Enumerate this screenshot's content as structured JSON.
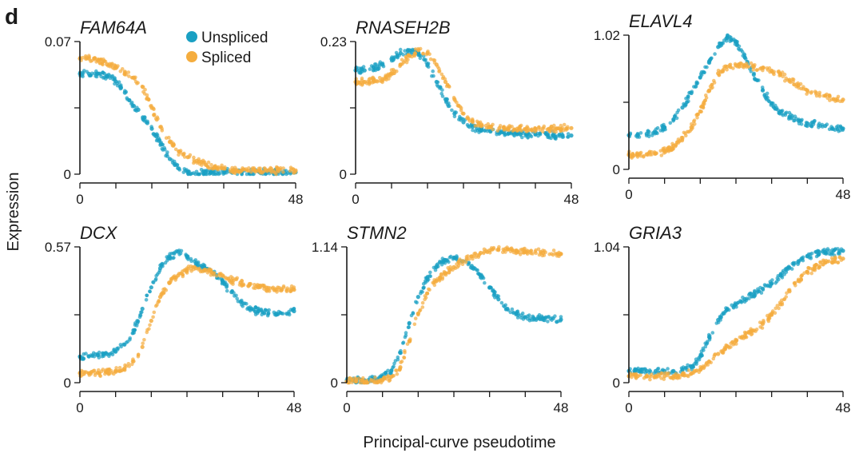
{
  "figure_label": "d",
  "xlabel": "Principal-curve pseudotime",
  "ylabel": "Expression",
  "colors": {
    "unspliced": "#1aa0c3",
    "spliced": "#f5ad3e"
  },
  "chart_data": [
    {
      "type": "scatter",
      "title": "FAM64A",
      "xlim": [
        0,
        48
      ],
      "ylim": [
        0,
        0.07
      ],
      "xtick_labels": [
        "0",
        "48"
      ],
      "ytick_labels": [
        "0",
        "0.07"
      ],
      "legend": {
        "position": "top-right",
        "entries": [
          "Unspliced",
          "Spliced"
        ]
      },
      "series": [
        {
          "name": "Unspliced",
          "x": [
            0,
            2,
            4,
            6,
            8,
            9,
            10,
            11,
            12,
            13,
            14,
            15,
            16,
            17,
            18,
            20,
            22,
            24,
            28,
            32,
            36,
            40,
            44,
            48
          ],
          "y": [
            0.053,
            0.053,
            0.053,
            0.052,
            0.049,
            0.046,
            0.043,
            0.039,
            0.036,
            0.034,
            0.03,
            0.027,
            0.024,
            0.02,
            0.016,
            0.008,
            0.003,
            0.001,
            0.001,
            0.001,
            0.001,
            0.001,
            0.001,
            0.001
          ]
        },
        {
          "name": "Spliced",
          "x": [
            0,
            2,
            4,
            6,
            8,
            10,
            12,
            14,
            16,
            18,
            20,
            22,
            24,
            26,
            28,
            30,
            32,
            34,
            36,
            40,
            44,
            48
          ],
          "y": [
            0.061,
            0.061,
            0.06,
            0.058,
            0.056,
            0.054,
            0.051,
            0.046,
            0.035,
            0.025,
            0.017,
            0.012,
            0.009,
            0.007,
            0.005,
            0.004,
            0.003,
            0.002,
            0.002,
            0.002,
            0.002,
            0.002
          ]
        }
      ]
    },
    {
      "type": "scatter",
      "title": "RNASEH2B",
      "xlim": [
        0,
        48
      ],
      "ylim": [
        0,
        0.23
      ],
      "xtick_labels": [
        "0",
        "48"
      ],
      "ytick_labels": [
        "0",
        "0.23"
      ],
      "series": [
        {
          "name": "Unspliced",
          "x": [
            0,
            2,
            4,
            6,
            8,
            10,
            12,
            14,
            16,
            18,
            20,
            22,
            24,
            26,
            28,
            30,
            32,
            34,
            36,
            38,
            40,
            44,
            48
          ],
          "y": [
            0.18,
            0.18,
            0.185,
            0.19,
            0.2,
            0.21,
            0.215,
            0.21,
            0.19,
            0.16,
            0.13,
            0.105,
            0.09,
            0.082,
            0.077,
            0.074,
            0.072,
            0.071,
            0.07,
            0.069,
            0.069,
            0.068,
            0.067
          ]
        },
        {
          "name": "Spliced",
          "x": [
            0,
            2,
            4,
            6,
            8,
            10,
            12,
            14,
            16,
            18,
            20,
            22,
            24,
            26,
            28,
            30,
            32,
            34,
            36,
            40,
            44,
            48
          ],
          "y": [
            0.16,
            0.16,
            0.162,
            0.165,
            0.175,
            0.19,
            0.205,
            0.215,
            0.21,
            0.19,
            0.16,
            0.13,
            0.105,
            0.092,
            0.086,
            0.082,
            0.08,
            0.079,
            0.079,
            0.079,
            0.079,
            0.08
          ]
        }
      ]
    },
    {
      "type": "scatter",
      "title": "ELAVL4",
      "xlim": [
        0,
        48
      ],
      "ylim": [
        0,
        1.02
      ],
      "xtick_labels": [
        "0",
        "48"
      ],
      "ytick_labels": [
        "0",
        "1.02"
      ],
      "series": [
        {
          "name": "Unspliced",
          "x": [
            0,
            2,
            4,
            6,
            8,
            10,
            12,
            14,
            16,
            18,
            20,
            22,
            24,
            26,
            28,
            30,
            32,
            34,
            36,
            38,
            40,
            44,
            48
          ],
          "y": [
            0.26,
            0.26,
            0.27,
            0.28,
            0.32,
            0.38,
            0.47,
            0.58,
            0.7,
            0.82,
            0.93,
            1.0,
            0.97,
            0.85,
            0.72,
            0.6,
            0.5,
            0.44,
            0.4,
            0.37,
            0.35,
            0.33,
            0.31
          ]
        },
        {
          "name": "Spliced",
          "x": [
            0,
            2,
            4,
            6,
            8,
            10,
            12,
            14,
            16,
            18,
            20,
            22,
            24,
            26,
            28,
            30,
            32,
            34,
            36,
            38,
            40,
            44,
            48
          ],
          "y": [
            0.11,
            0.11,
            0.115,
            0.12,
            0.14,
            0.18,
            0.24,
            0.32,
            0.44,
            0.6,
            0.73,
            0.78,
            0.79,
            0.79,
            0.78,
            0.77,
            0.75,
            0.72,
            0.68,
            0.64,
            0.6,
            0.56,
            0.53
          ]
        }
      ]
    },
    {
      "type": "scatter",
      "title": "DCX",
      "xlim": [
        0,
        48
      ],
      "ylim": [
        0,
        0.57
      ],
      "xtick_labels": [
        "0",
        "48"
      ],
      "ytick_labels": [
        "0",
        "0.57"
      ],
      "series": [
        {
          "name": "Unspliced",
          "x": [
            0,
            2,
            4,
            6,
            8,
            10,
            12,
            14,
            16,
            18,
            20,
            22,
            24,
            26,
            28,
            30,
            32,
            34,
            36,
            38,
            40,
            44,
            48
          ],
          "y": [
            0.11,
            0.11,
            0.115,
            0.12,
            0.13,
            0.16,
            0.22,
            0.31,
            0.4,
            0.48,
            0.53,
            0.55,
            0.53,
            0.5,
            0.48,
            0.46,
            0.42,
            0.38,
            0.34,
            0.31,
            0.3,
            0.29,
            0.3
          ]
        },
        {
          "name": "Spliced",
          "x": [
            0,
            2,
            4,
            6,
            8,
            10,
            12,
            14,
            16,
            18,
            20,
            22,
            24,
            26,
            28,
            30,
            32,
            34,
            36,
            38,
            40,
            44,
            48
          ],
          "y": [
            0.04,
            0.04,
            0.042,
            0.045,
            0.05,
            0.06,
            0.09,
            0.15,
            0.26,
            0.36,
            0.42,
            0.45,
            0.47,
            0.48,
            0.47,
            0.46,
            0.45,
            0.43,
            0.42,
            0.41,
            0.4,
            0.39,
            0.39
          ]
        }
      ]
    },
    {
      "type": "scatter",
      "title": "STMN2",
      "xlim": [
        0,
        48
      ],
      "ylim": [
        0,
        1.14
      ],
      "xtick_labels": [
        "0",
        "48"
      ],
      "ytick_labels": [
        "0",
        "1.14"
      ],
      "series": [
        {
          "name": "Unspliced",
          "x": [
            0,
            2,
            4,
            6,
            8,
            10,
            12,
            14,
            16,
            18,
            20,
            22,
            24,
            26,
            28,
            30,
            32,
            34,
            36,
            38,
            40,
            44,
            48
          ],
          "y": [
            0.02,
            0.02,
            0.02,
            0.03,
            0.05,
            0.1,
            0.25,
            0.5,
            0.72,
            0.88,
            0.97,
            1.03,
            1.05,
            1.02,
            0.98,
            0.9,
            0.8,
            0.7,
            0.62,
            0.58,
            0.55,
            0.54,
            0.53
          ]
        },
        {
          "name": "Spliced",
          "x": [
            0,
            2,
            4,
            6,
            8,
            10,
            12,
            14,
            16,
            18,
            20,
            22,
            24,
            26,
            28,
            30,
            32,
            34,
            36,
            38,
            40,
            44,
            48
          ],
          "y": [
            0.01,
            0.01,
            0.01,
            0.015,
            0.02,
            0.05,
            0.13,
            0.35,
            0.58,
            0.75,
            0.85,
            0.92,
            0.97,
            1.02,
            1.06,
            1.09,
            1.11,
            1.12,
            1.12,
            1.11,
            1.1,
            1.09,
            1.08
          ]
        }
      ]
    },
    {
      "type": "scatter",
      "title": "GRIA3",
      "xlim": [
        0,
        48
      ],
      "ylim": [
        0,
        1.04
      ],
      "xtick_labels": [
        "0",
        "48"
      ],
      "ytick_labels": [
        "0",
        "1.04"
      ],
      "series": [
        {
          "name": "Unspliced",
          "x": [
            0,
            2,
            4,
            6,
            8,
            10,
            12,
            14,
            16,
            18,
            20,
            22,
            24,
            26,
            28,
            30,
            32,
            34,
            36,
            38,
            40,
            44,
            48
          ],
          "y": [
            0.09,
            0.09,
            0.09,
            0.09,
            0.09,
            0.09,
            0.1,
            0.12,
            0.2,
            0.35,
            0.48,
            0.56,
            0.6,
            0.64,
            0.68,
            0.72,
            0.76,
            0.82,
            0.88,
            0.93,
            0.97,
            1.0,
            1.01
          ]
        },
        {
          "name": "Spliced",
          "x": [
            0,
            2,
            4,
            6,
            8,
            10,
            12,
            14,
            16,
            18,
            20,
            22,
            24,
            26,
            28,
            30,
            32,
            34,
            36,
            38,
            40,
            44,
            48
          ],
          "y": [
            0.05,
            0.05,
            0.05,
            0.05,
            0.05,
            0.05,
            0.06,
            0.07,
            0.1,
            0.16,
            0.22,
            0.28,
            0.32,
            0.36,
            0.4,
            0.45,
            0.52,
            0.6,
            0.7,
            0.78,
            0.85,
            0.92,
            0.95
          ]
        }
      ]
    }
  ]
}
